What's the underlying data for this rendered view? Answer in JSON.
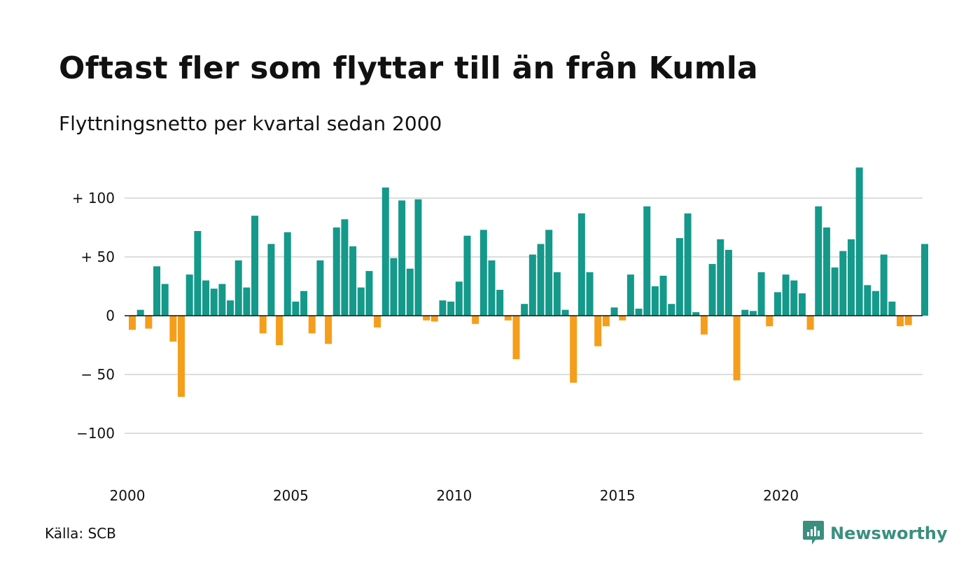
{
  "title": "Oftast fler som flyttar till än från Kumla",
  "subtitle": "Flyttningsnetto per kvartal sedan 2000",
  "source": "Källa: SCB",
  "brand": {
    "name": "Newsworthy",
    "color": "#3a8f7f",
    "icon": "newsworthy-logo-icon"
  },
  "colors": {
    "positive": "#14998a",
    "negative": "#f59e1b",
    "grid": "#dddddd",
    "zero_line": "#111111"
  },
  "chart_data": {
    "type": "bar",
    "title": "Oftast fler som flyttar till än från Kumla",
    "subtitle": "Flyttningsnetto per kvartal sedan 2000",
    "xlabel": "",
    "ylabel": "",
    "x_start": "2000-Q1",
    "x_end": "2024-Q2",
    "ylim": [
      -135,
      130
    ],
    "yticks": [
      {
        "value": 100,
        "label": "+ 100"
      },
      {
        "value": 50,
        "label": "+  50"
      },
      {
        "value": 0,
        "label": "0"
      },
      {
        "value": -50,
        "label": "− 50"
      },
      {
        "value": -100,
        "label": "−100"
      }
    ],
    "xticks": [
      {
        "value": "2000-Q1",
        "label": "2000"
      },
      {
        "value": "2005-Q1",
        "label": "2005"
      },
      {
        "value": "2010-Q1",
        "label": "2010"
      },
      {
        "value": "2015-Q1",
        "label": "2015"
      },
      {
        "value": "2020-Q1",
        "label": "2020"
      }
    ],
    "grid": true,
    "legend": "none",
    "values": [
      -12,
      5,
      -11,
      42,
      27,
      -22,
      -69,
      35,
      72,
      30,
      23,
      27,
      13,
      47,
      24,
      85,
      -15,
      61,
      -25,
      71,
      12,
      21,
      -15,
      47,
      -24,
      75,
      82,
      59,
      24,
      38,
      -10,
      109,
      49,
      98,
      40,
      99,
      -4,
      -5,
      13,
      12,
      29,
      68,
      -7,
      73,
      47,
      22,
      -4,
      -37,
      10,
      52,
      61,
      73,
      37,
      5,
      -57,
      87,
      37,
      -26,
      -9,
      7,
      -4,
      35,
      6,
      93,
      25,
      34,
      10,
      66,
      87,
      3,
      -16,
      44,
      65,
      56,
      -55,
      5,
      4,
      37,
      -9,
      20,
      35,
      30,
      19,
      -12,
      93,
      75,
      41,
      55,
      65,
      126,
      26,
      21,
      52,
      12,
      -9,
      -8,
      0,
      61
    ]
  }
}
